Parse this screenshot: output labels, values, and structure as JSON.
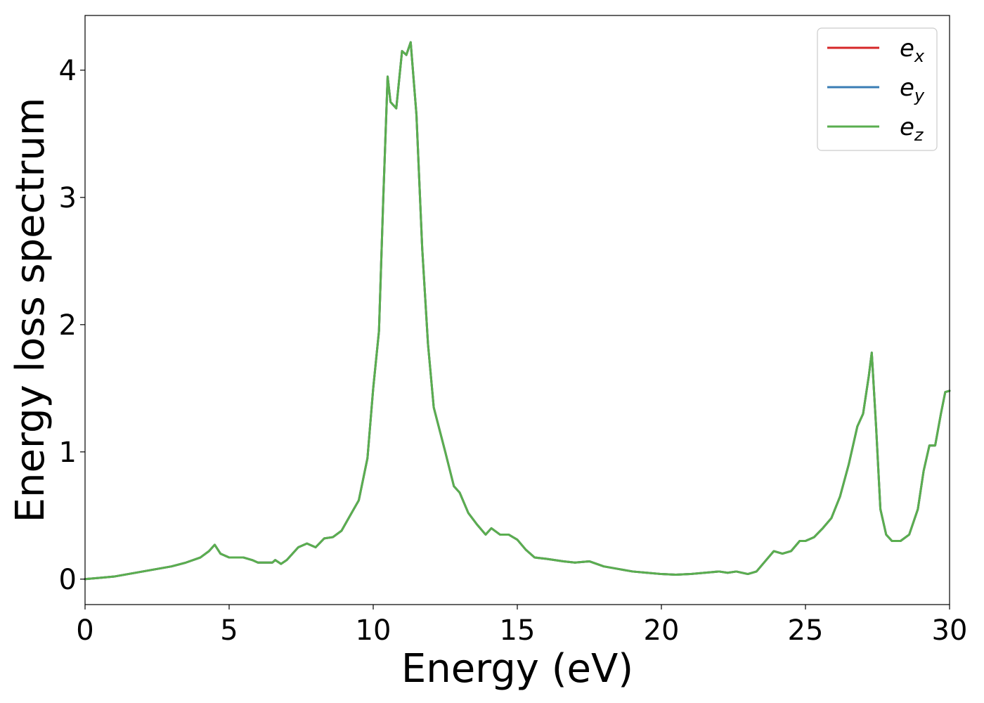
{
  "chart_data": {
    "type": "line",
    "title": "",
    "xlabel": "Energy (eV)",
    "ylabel": "Energy loss spectrum",
    "xlim": [
      0,
      30
    ],
    "ylim": [
      -0.2,
      4.43
    ],
    "xticks": [
      0,
      5,
      10,
      15,
      20,
      25,
      30
    ],
    "yticks": [
      0,
      1,
      2,
      3,
      4
    ],
    "grid": false,
    "legend_position": "top-right",
    "legend": [
      {
        "base": "e",
        "sub": "x",
        "color": "#d62728"
      },
      {
        "base": "e",
        "sub": "y",
        "color": "#3a7db5"
      },
      {
        "base": "e",
        "sub": "z",
        "color": "#5aae4f"
      }
    ],
    "x": [
      0,
      0.5,
      1.0,
      1.5,
      2.0,
      2.5,
      3.0,
      3.5,
      4.0,
      4.3,
      4.5,
      4.7,
      5.0,
      5.5,
      5.8,
      6.0,
      6.5,
      6.6,
      6.8,
      7.0,
      7.4,
      7.7,
      8.0,
      8.3,
      8.6,
      8.9,
      9.2,
      9.5,
      9.8,
      10.0,
      10.2,
      10.35,
      10.5,
      10.6,
      10.8,
      11.0,
      11.15,
      11.3,
      11.5,
      11.7,
      11.9,
      12.1,
      12.5,
      12.8,
      13.0,
      13.3,
      13.6,
      13.9,
      14.1,
      14.4,
      14.7,
      15.0,
      15.3,
      15.6,
      16.0,
      16.6,
      17.0,
      17.5,
      18.0,
      18.5,
      19.0,
      19.5,
      20.0,
      20.5,
      21.0,
      21.5,
      22.0,
      22.3,
      22.6,
      23.0,
      23.3,
      23.6,
      23.9,
      24.2,
      24.5,
      24.8,
      25.0,
      25.3,
      25.6,
      25.9,
      26.2,
      26.5,
      26.8,
      27.0,
      27.2,
      27.3,
      27.45,
      27.6,
      27.8,
      28.0,
      28.3,
      28.6,
      28.9,
      29.1,
      29.3,
      29.5,
      29.7,
      29.85,
      30.0
    ],
    "series": [
      {
        "name": "e_x",
        "values": [
          0.0,
          0.01,
          0.02,
          0.04,
          0.06,
          0.08,
          0.1,
          0.13,
          0.17,
          0.22,
          0.27,
          0.2,
          0.17,
          0.17,
          0.15,
          0.13,
          0.13,
          0.15,
          0.12,
          0.15,
          0.25,
          0.28,
          0.25,
          0.32,
          0.33,
          0.38,
          0.5,
          0.62,
          0.95,
          1.5,
          1.95,
          3.0,
          3.95,
          3.75,
          3.7,
          4.15,
          4.12,
          4.22,
          3.65,
          2.6,
          1.85,
          1.35,
          1.0,
          0.73,
          0.68,
          0.52,
          0.43,
          0.35,
          0.4,
          0.35,
          0.35,
          0.31,
          0.23,
          0.17,
          0.16,
          0.14,
          0.13,
          0.14,
          0.1,
          0.08,
          0.06,
          0.05,
          0.04,
          0.035,
          0.04,
          0.05,
          0.06,
          0.05,
          0.06,
          0.04,
          0.06,
          0.14,
          0.22,
          0.2,
          0.22,
          0.3,
          0.3,
          0.33,
          0.4,
          0.48,
          0.65,
          0.9,
          1.2,
          1.3,
          1.6,
          1.78,
          1.2,
          0.55,
          0.35,
          0.3,
          0.3,
          0.35,
          0.55,
          0.85,
          1.05,
          1.05,
          1.3,
          1.47,
          1.48
        ]
      },
      {
        "name": "e_y",
        "values": [
          0.0,
          0.01,
          0.02,
          0.04,
          0.06,
          0.08,
          0.1,
          0.13,
          0.17,
          0.22,
          0.27,
          0.2,
          0.17,
          0.17,
          0.15,
          0.13,
          0.13,
          0.15,
          0.12,
          0.15,
          0.25,
          0.28,
          0.25,
          0.32,
          0.33,
          0.38,
          0.5,
          0.62,
          0.95,
          1.5,
          1.95,
          3.0,
          3.95,
          3.75,
          3.7,
          4.15,
          4.12,
          4.22,
          3.65,
          2.6,
          1.85,
          1.35,
          1.0,
          0.73,
          0.68,
          0.52,
          0.43,
          0.35,
          0.4,
          0.35,
          0.35,
          0.31,
          0.23,
          0.17,
          0.16,
          0.14,
          0.13,
          0.14,
          0.1,
          0.08,
          0.06,
          0.05,
          0.04,
          0.035,
          0.04,
          0.05,
          0.06,
          0.05,
          0.06,
          0.04,
          0.06,
          0.14,
          0.22,
          0.2,
          0.22,
          0.3,
          0.3,
          0.33,
          0.4,
          0.48,
          0.65,
          0.9,
          1.2,
          1.3,
          1.6,
          1.78,
          1.2,
          0.55,
          0.35,
          0.3,
          0.3,
          0.35,
          0.55,
          0.85,
          1.05,
          1.05,
          1.3,
          1.47,
          1.48
        ]
      },
      {
        "name": "e_z",
        "values": [
          0.0,
          0.01,
          0.02,
          0.04,
          0.06,
          0.08,
          0.1,
          0.13,
          0.17,
          0.22,
          0.27,
          0.2,
          0.17,
          0.17,
          0.15,
          0.13,
          0.13,
          0.15,
          0.12,
          0.15,
          0.25,
          0.28,
          0.25,
          0.32,
          0.33,
          0.38,
          0.5,
          0.62,
          0.95,
          1.5,
          1.95,
          3.0,
          3.95,
          3.75,
          3.7,
          4.15,
          4.12,
          4.22,
          3.65,
          2.6,
          1.85,
          1.35,
          1.0,
          0.73,
          0.68,
          0.52,
          0.43,
          0.35,
          0.4,
          0.35,
          0.35,
          0.31,
          0.23,
          0.17,
          0.16,
          0.14,
          0.13,
          0.14,
          0.1,
          0.08,
          0.06,
          0.05,
          0.04,
          0.035,
          0.04,
          0.05,
          0.06,
          0.05,
          0.06,
          0.04,
          0.06,
          0.14,
          0.22,
          0.2,
          0.22,
          0.3,
          0.3,
          0.33,
          0.4,
          0.48,
          0.65,
          0.9,
          1.2,
          1.3,
          1.6,
          1.78,
          1.2,
          0.55,
          0.35,
          0.3,
          0.3,
          0.35,
          0.55,
          0.85,
          1.05,
          1.05,
          1.3,
          1.47,
          1.48
        ]
      }
    ]
  }
}
